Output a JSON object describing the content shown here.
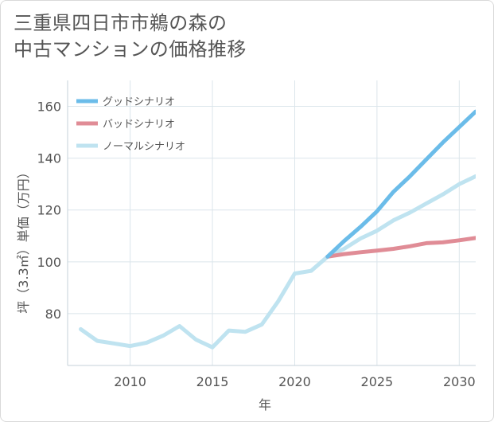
{
  "title": {
    "line1": "三重県四日市市鵜の森の",
    "line2": "中古マンションの価格推移"
  },
  "chart_data": {
    "type": "line",
    "xlabel": "年",
    "ylabel": "坪（3.3㎡）単価（万円）",
    "xlim": [
      2006.2,
      2031
    ],
    "ylim": [
      60,
      170
    ],
    "xticks": [
      2010,
      2015,
      2020,
      2025,
      2030
    ],
    "yticks": [
      80,
      100,
      120,
      140,
      160
    ],
    "grid": true,
    "legend_position": "top-left",
    "series": [
      {
        "name": "グッドシナリオ",
        "color": "#6bbce9",
        "x": [
          2022,
          2023,
          2024,
          2025,
          2026,
          2027,
          2028,
          2029,
          2030,
          2031
        ],
        "values": [
          102,
          108,
          113.5,
          119.5,
          127,
          133,
          139.5,
          146,
          152,
          158
        ]
      },
      {
        "name": "バッドシナリオ",
        "color": "#e08c96",
        "x": [
          2022,
          2023,
          2024,
          2025,
          2026,
          2027,
          2028,
          2029,
          2030,
          2031
        ],
        "values": [
          102,
          103,
          103.7,
          104.3,
          105,
          106,
          107.2,
          107.5,
          108.3,
          109.2
        ]
      },
      {
        "name": "ノーマルシナリオ",
        "color": "#bfe3f0",
        "x": [
          2007,
          2008,
          2009,
          2010,
          2011,
          2012,
          2013,
          2014,
          2015,
          2016,
          2017,
          2018,
          2019,
          2020,
          2021,
          2022,
          2023,
          2024,
          2025,
          2026,
          2027,
          2028,
          2029,
          2030,
          2031
        ],
        "values": [
          74,
          69.5,
          68.5,
          67.5,
          68.8,
          71.5,
          75.2,
          70,
          67,
          73.5,
          73,
          75.8,
          84.8,
          95.5,
          96.5,
          102,
          105,
          109,
          112,
          116,
          119,
          122.5,
          126,
          130,
          133
        ]
      }
    ]
  }
}
